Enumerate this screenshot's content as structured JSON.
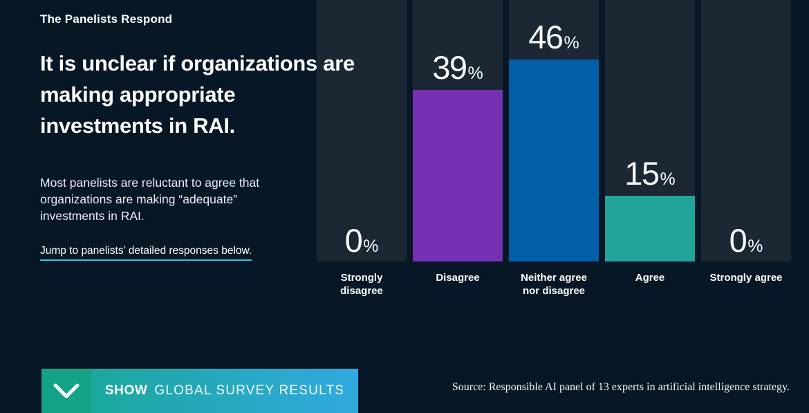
{
  "page": {
    "eyebrow": "The Panelists Respond",
    "heading_lines": [
      "It is unclear if organizations are",
      "making appropriate",
      "investments in RAI."
    ],
    "description_lines": [
      "Most panelists are reluctant to agree that",
      "organizations are making “adequate”",
      "investments in RAI."
    ],
    "jump_link": "Jump to panelists’ detailed responses below.",
    "source": "Source: Responsible AI panel of 13 experts in artificial intelligence strategy."
  },
  "cta_button": {
    "icon": "chevron-down-icon",
    "label_bold": "SHOW",
    "label_rest": "GLOBAL SURVEY RESULTS",
    "icon_box_color": "#14a287",
    "gradient_start": "#1ba89e",
    "gradient_end": "#31a9e0"
  },
  "chart_data": {
    "type": "bar",
    "title": "It is unclear if organizations are making appropriate investments in RAI.",
    "categories": [
      "Strongly disagree",
      "Disagree",
      "Neither agree nor disagree",
      "Agree",
      "Strongly agree"
    ],
    "values": [
      0,
      39,
      46,
      15,
      0
    ],
    "value_labels": [
      "0%",
      "39%",
      "46%",
      "15%",
      "0%"
    ],
    "unit": "%",
    "ylim": [
      0,
      60
    ],
    "grid": false,
    "legend": "none",
    "bar_colors": [
      "none",
      "#7630b3",
      "#005fa8",
      "#23a498",
      "none"
    ],
    "track_color": "#1b2834",
    "background_color": "#081725",
    "value_label_color": "#f7fafc",
    "category_label_color": "#ffffff"
  },
  "colors": {
    "background": "#081725",
    "text": "#ffffff",
    "link_underline": "#35c5e5"
  }
}
